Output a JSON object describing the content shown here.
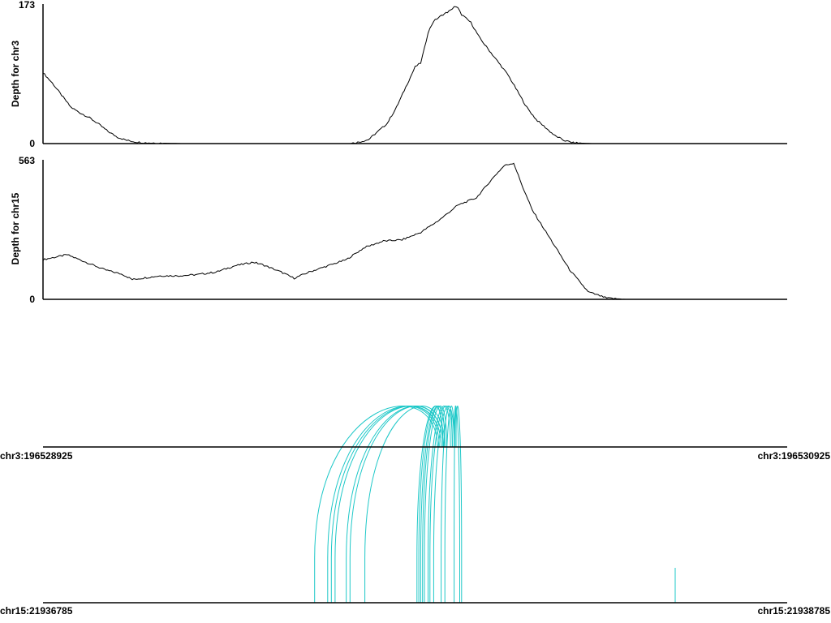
{
  "arc_color": "#1ec8c8",
  "chart_data": [
    {
      "type": "area",
      "ylabel": "Depth for chr3",
      "ylim": [
        0,
        173
      ],
      "yticks": [
        "173",
        "0"
      ],
      "region": "chr3:196528925-196530925",
      "profile": [
        [
          196528925,
          88
        ],
        [
          196528950,
          75
        ],
        [
          196528975,
          60
        ],
        [
          196529000,
          45
        ],
        [
          196529025,
          38
        ],
        [
          196529050,
          32
        ],
        [
          196529075,
          24
        ],
        [
          196529100,
          15
        ],
        [
          196529125,
          8
        ],
        [
          196529150,
          4
        ],
        [
          196529175,
          2
        ],
        [
          196529200,
          1
        ],
        [
          196529250,
          0.5
        ],
        [
          196529300,
          0
        ],
        [
          196529750,
          0
        ],
        [
          196529775,
          2
        ],
        [
          196529800,
          5
        ],
        [
          196529825,
          15
        ],
        [
          196529850,
          25
        ],
        [
          196529875,
          45
        ],
        [
          196529900,
          70
        ],
        [
          196529925,
          95
        ],
        [
          196529940,
          100
        ],
        [
          196529950,
          118
        ],
        [
          196529960,
          138
        ],
        [
          196529975,
          152
        ],
        [
          196530000,
          160
        ],
        [
          196530020,
          165
        ],
        [
          196530030,
          170
        ],
        [
          196530040,
          168
        ],
        [
          196530050,
          160
        ],
        [
          196530075,
          150
        ],
        [
          196530100,
          130
        ],
        [
          196530125,
          115
        ],
        [
          196530150,
          100
        ],
        [
          196530175,
          85
        ],
        [
          196530200,
          65
        ],
        [
          196530225,
          45
        ],
        [
          196530250,
          30
        ],
        [
          196530275,
          20
        ],
        [
          196530300,
          10
        ],
        [
          196530325,
          4
        ],
        [
          196530350,
          1
        ],
        [
          196530400,
          0
        ],
        [
          196530500,
          0
        ],
        [
          196530925,
          0
        ]
      ]
    },
    {
      "type": "area",
      "ylabel": "Depth for chr15",
      "ylim": [
        0,
        563
      ],
      "yticks": [
        "563",
        "0"
      ],
      "region": "chr15:21936785-21938785",
      "profile": [
        [
          21936785,
          160
        ],
        [
          21936850,
          180
        ],
        [
          21936900,
          150
        ],
        [
          21936950,
          120
        ],
        [
          21937000,
          100
        ],
        [
          21937025,
          80
        ],
        [
          21937050,
          85
        ],
        [
          21937100,
          95
        ],
        [
          21937150,
          95
        ],
        [
          21937200,
          100
        ],
        [
          21937250,
          110
        ],
        [
          21937300,
          135
        ],
        [
          21937350,
          150
        ],
        [
          21937375,
          140
        ],
        [
          21937425,
          110
        ],
        [
          21937460,
          85
        ],
        [
          21937500,
          110
        ],
        [
          21937550,
          135
        ],
        [
          21937600,
          160
        ],
        [
          21937650,
          210
        ],
        [
          21937700,
          235
        ],
        [
          21937750,
          240
        ],
        [
          21937800,
          270
        ],
        [
          21937850,
          320
        ],
        [
          21937900,
          380
        ],
        [
          21937950,
          410
        ],
        [
          21938000,
          500
        ],
        [
          21938025,
          540
        ],
        [
          21938050,
          550
        ],
        [
          21938075,
          450
        ],
        [
          21938100,
          360
        ],
        [
          21938150,
          240
        ],
        [
          21938200,
          120
        ],
        [
          21938250,
          30
        ],
        [
          21938300,
          5
        ],
        [
          21938350,
          0
        ],
        [
          21938785,
          0
        ]
      ]
    }
  ],
  "axes": {
    "top_left": "chr3:196528925",
    "top_right": "chr3:196530925",
    "bottom_left": "chr15:21936785",
    "bottom_right": "chr15:21938785"
  },
  "junctions": [
    {
      "chr3": 196529985,
      "chr15": 21937515
    },
    {
      "chr3": 196529990,
      "chr15": 21937550
    },
    {
      "chr3": 196529995,
      "chr15": 21937560
    },
    {
      "chr3": 196529995,
      "chr15": 21937570
    },
    {
      "chr3": 196530000,
      "chr15": 21937600
    },
    {
      "chr3": 196530000,
      "chr15": 21937610
    },
    {
      "chr3": 196530005,
      "chr15": 21937650
    },
    {
      "chr3": 196530000,
      "chr15": 21937790
    },
    {
      "chr3": 196530000,
      "chr15": 21937795
    },
    {
      "chr3": 196530005,
      "chr15": 21937800
    },
    {
      "chr3": 196530005,
      "chr15": 21937805
    },
    {
      "chr3": 196530010,
      "chr15": 21937810
    },
    {
      "chr3": 196530020,
      "chr15": 21937820
    },
    {
      "chr3": 196530025,
      "chr15": 21937825
    },
    {
      "chr3": 196530030,
      "chr15": 21937835
    },
    {
      "chr3": 196530025,
      "chr15": 21937855
    },
    {
      "chr3": 196530030,
      "chr15": 21937865
    },
    {
      "chr3": 196530035,
      "chr15": 21937890
    },
    {
      "chr3": 196530030,
      "chr15": 21937905
    },
    {
      "chr3": 196530035,
      "chr15": 21937910
    }
  ]
}
